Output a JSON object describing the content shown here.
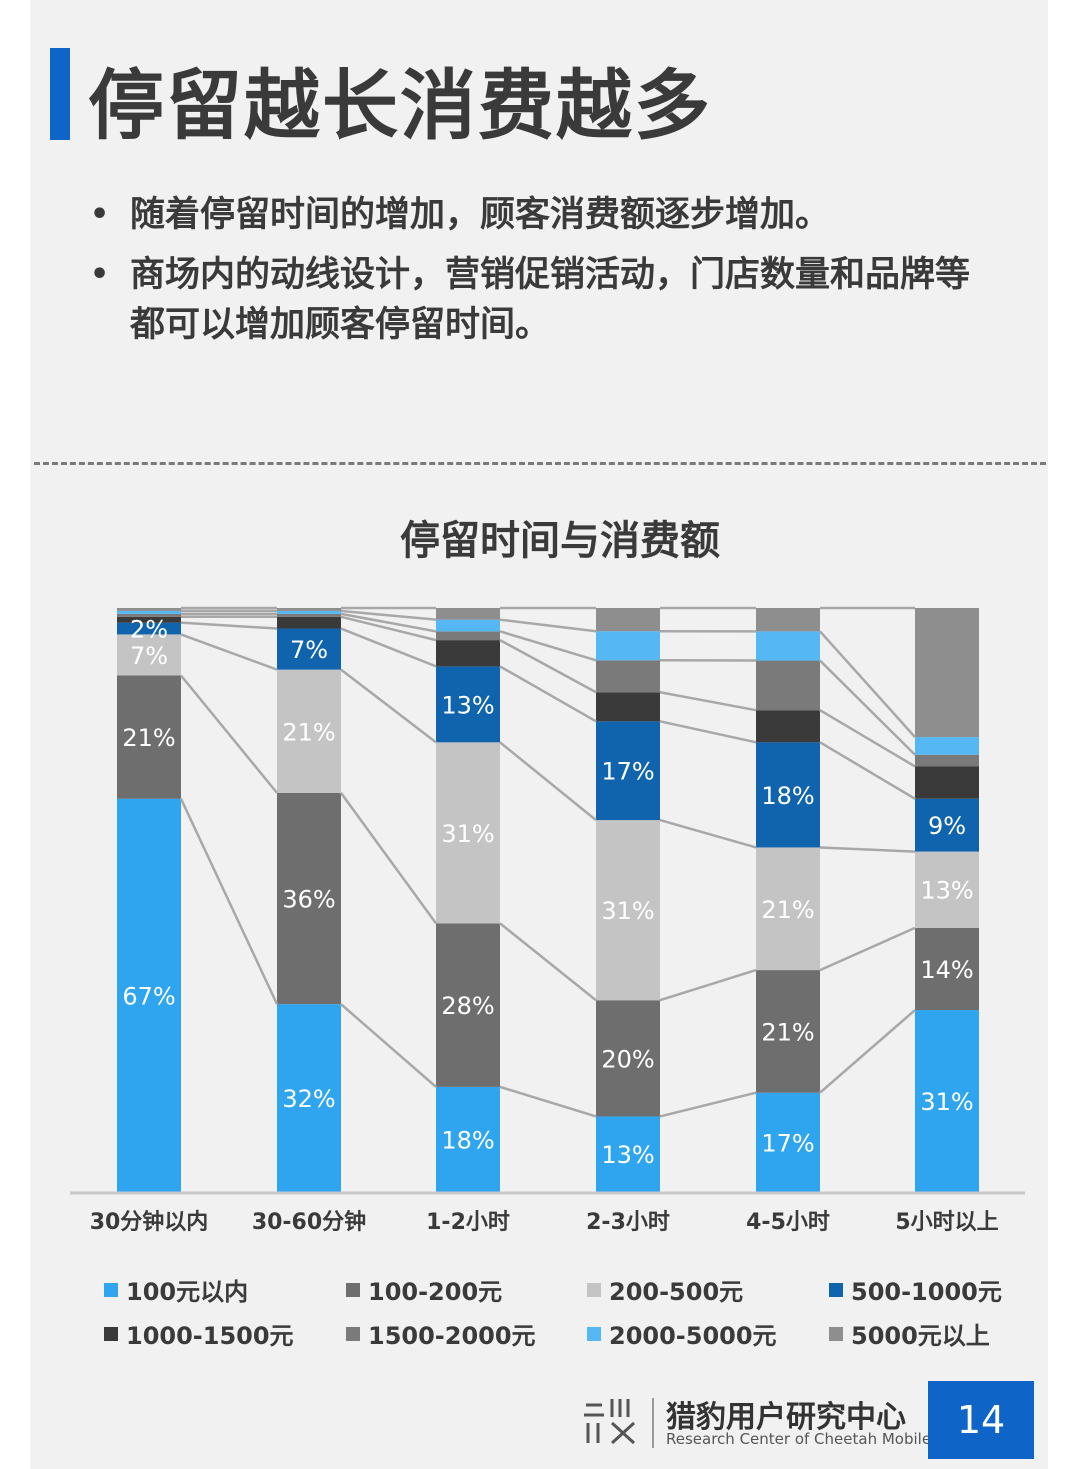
{
  "page": {
    "title": "停留越长消费越多",
    "bullets": [
      "随着停留时间的增加，顾客消费额逐步增加。",
      "商场内的动线设计，营销促销活动，门店数量和品牌等都可以增加顾客停留时间。"
    ],
    "footer_cn": "猎豹用户研究中心",
    "footer_en": "Research Center of Cheetah Mobile",
    "page_number": "14"
  },
  "colors": {
    "accent": "#0f64c8",
    "series": [
      "#2fa4ef",
      "#6e6e6e",
      "#c4c4c4",
      "#0f64ad",
      "#3a3a3a",
      "#7a7a7a",
      "#55b8f5",
      "#8e8e8e"
    ]
  },
  "icons": {
    "logo": "cheetah-wei-logo-icon"
  },
  "chart_data": {
    "type": "bar",
    "stacked": true,
    "title": "停留时间与消费额",
    "categories": [
      "30分钟以内",
      "30-60分钟",
      "1-2小时",
      "2-3小时",
      "4-5小时",
      "5小时以上"
    ],
    "ylim": [
      0,
      100
    ],
    "legend_position": "bottom",
    "series": [
      {
        "name": "100元以内",
        "values": [
          67,
          32,
          18,
          13,
          17,
          31
        ],
        "labels": [
          "67%",
          "32%",
          "18%",
          "13%",
          "17%",
          "31%"
        ]
      },
      {
        "name": "100-200元",
        "values": [
          21,
          36,
          28,
          20,
          21,
          14
        ],
        "labels": [
          "21%",
          "36%",
          "28%",
          "20%",
          "21%",
          "14%"
        ]
      },
      {
        "name": "200-500元",
        "values": [
          7,
          21,
          31,
          31,
          21,
          13
        ],
        "labels": [
          "7%",
          "21%",
          "31%",
          "31%",
          "21%",
          "13%"
        ]
      },
      {
        "name": "500-1000元",
        "values": [
          2,
          7,
          13,
          17,
          18,
          9
        ],
        "labels": [
          "2%",
          "7%",
          "13%",
          "17%",
          "18%",
          "9%"
        ]
      },
      {
        "name": "1000-1500元",
        "values": [
          1,
          2,
          4.5,
          5,
          5.5,
          5.5
        ],
        "labels": [
          "",
          "",
          "",
          "",
          "",
          ""
        ]
      },
      {
        "name": "1500-2000元",
        "values": [
          0.5,
          0.5,
          1.5,
          5.5,
          8.5,
          2
        ],
        "labels": [
          "",
          "",
          "",
          "",
          "",
          ""
        ]
      },
      {
        "name": "2000-5000元",
        "values": [
          0.5,
          0.5,
          2,
          5,
          5,
          3
        ],
        "labels": [
          "",
          "",
          "",
          "",
          "",
          ""
        ]
      },
      {
        "name": "5000元以上",
        "values": [
          0.5,
          0.5,
          2,
          4,
          4,
          22
        ],
        "labels": [
          "",
          "",
          "",
          "",
          "",
          ""
        ]
      }
    ]
  }
}
